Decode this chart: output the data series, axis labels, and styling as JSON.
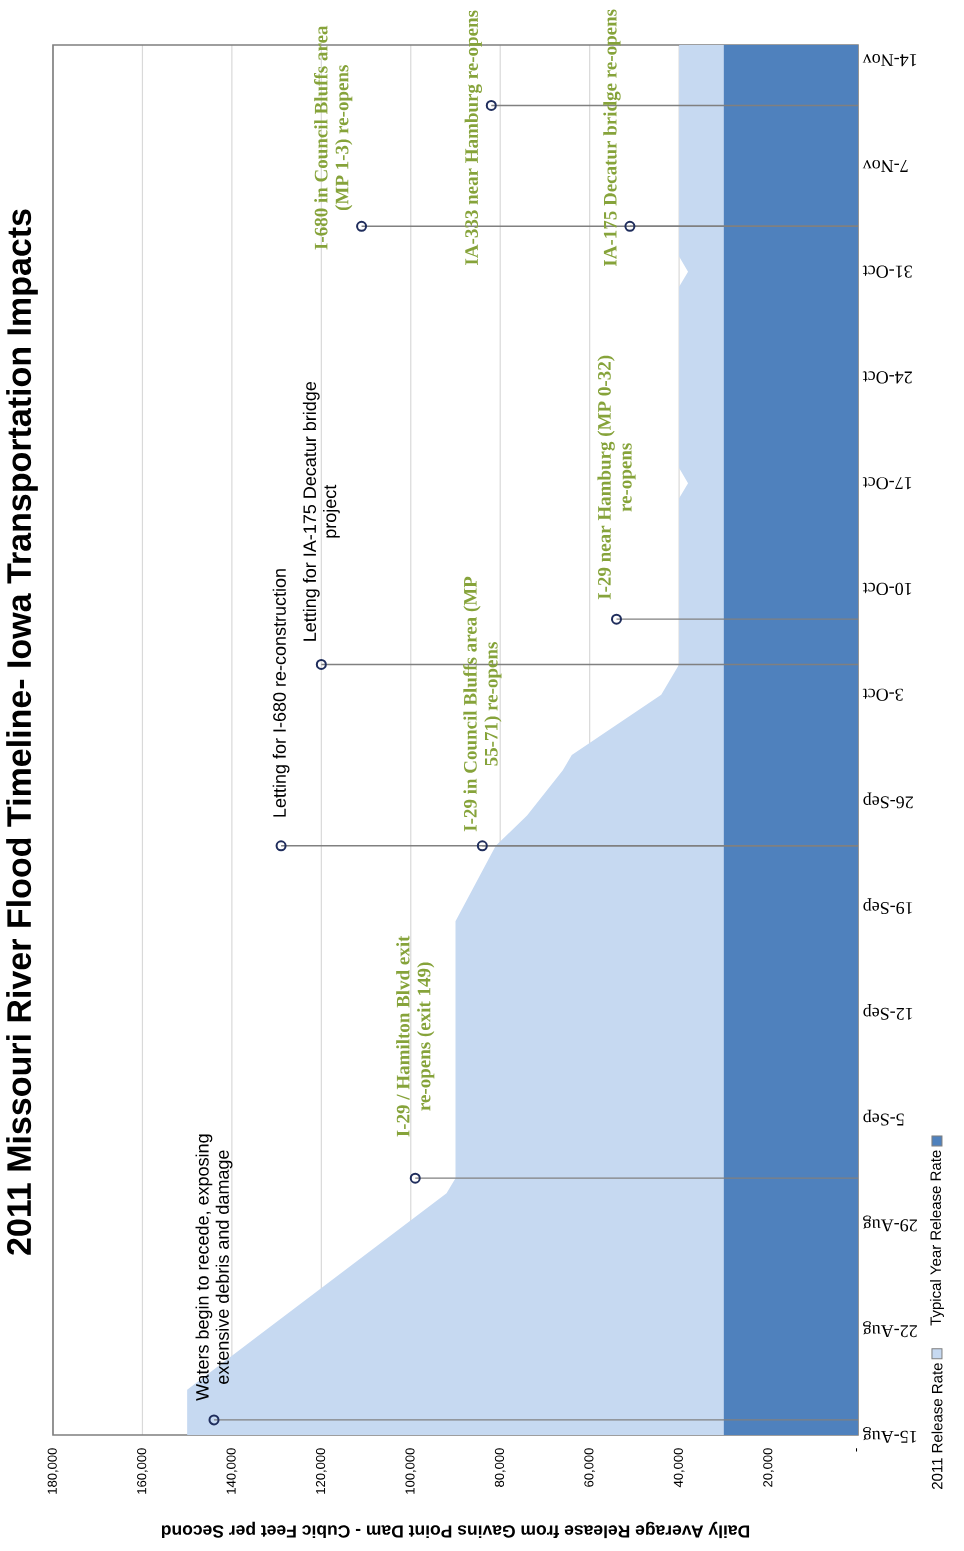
{
  "chart_data": {
    "type": "area",
    "orientation": "horizontal",
    "title": "2011 Missouri River Flood Timeline- Iowa Transportation Impacts",
    "xlabel": "Daily Average Release from Gavins Point Dam - Cubic Feet per Second",
    "series": [
      {
        "name": "2011 Release Rate",
        "color": "#c6d9f1",
        "x": [
          "2011-08-15",
          "2011-08-18",
          "2011-08-31",
          "2011-09-01",
          "2011-09-18",
          "2011-09-23",
          "2011-09-25",
          "2011-09-28",
          "2011-09-29",
          "2011-10-03",
          "2011-10-05",
          "2011-10-16",
          "2011-10-17",
          "2011-10-18",
          "2011-10-30",
          "2011-10-31",
          "2011-11-01",
          "2011-11-15"
        ],
        "values": [
          150000,
          150000,
          92000,
          90000,
          90000,
          81000,
          74000,
          66000,
          64000,
          44000,
          40000,
          40000,
          38000,
          40000,
          40000,
          38000,
          40000,
          40000
        ]
      },
      {
        "name": "Typical Year Release Rate",
        "color": "#4f81bd",
        "x": [
          "2011-08-15",
          "2011-11-15"
        ],
        "values": [
          30000,
          30000
        ]
      },
      {
        "type": "lollipop",
        "color": "#1f2d5c",
        "x": [
          "2011-08-16",
          "2011-09-23",
          "2011-10-05"
        ],
        "values": [
          144000,
          129000,
          120000
        ]
      },
      {
        "type": "lollipop",
        "color": "#1f2d5c",
        "x": [
          "2011-09-01",
          "2011-09-23",
          "2011-10-08",
          "2011-11-03",
          "2011-11-03",
          "2011-11-11"
        ],
        "values": [
          99000,
          84000,
          54000,
          111000,
          51000,
          82000
        ]
      }
    ],
    "xlim": [
      180000,
      0
    ],
    "xticks": [
      {
        "value": 180000,
        "label": "180,000"
      },
      {
        "value": 160000,
        "label": "160,000"
      },
      {
        "value": 140000,
        "label": "140,000"
      },
      {
        "value": 120000,
        "label": "120,000"
      },
      {
        "value": 100000,
        "label": "100,000"
      },
      {
        "value": 80000,
        "label": "80,000"
      },
      {
        "value": 60000,
        "label": "60,000"
      },
      {
        "value": 40000,
        "label": "40,000"
      },
      {
        "value": 20000,
        "label": "20,000"
      },
      {
        "value": 0,
        "label": "-"
      }
    ],
    "ylim": [
      "2011-08-15",
      "2011-11-15"
    ],
    "yticks": [
      {
        "value": "2011-08-15",
        "label": "15-Aug"
      },
      {
        "value": "2011-08-22",
        "label": "22-Aug"
      },
      {
        "value": "2011-08-29",
        "label": "29-Aug"
      },
      {
        "value": "2011-09-05",
        "label": "5-Sep"
      },
      {
        "value": "2011-09-12",
        "label": "12-Sep"
      },
      {
        "value": "2011-09-19",
        "label": "19-Sep"
      },
      {
        "value": "2011-09-26",
        "label": "26-Sep"
      },
      {
        "value": "2011-10-03",
        "label": "3-Oct"
      },
      {
        "value": "2011-10-10",
        "label": "10-Oct"
      },
      {
        "value": "2011-10-17",
        "label": "17-Oct"
      },
      {
        "value": "2011-10-24",
        "label": "24-Oct"
      },
      {
        "value": "2011-10-31",
        "label": "31-Oct"
      },
      {
        "value": "2011-11-07",
        "label": "7-Nov"
      },
      {
        "value": "2011-11-14",
        "label": "14-Nov"
      }
    ],
    "grid": "x",
    "legend": "bottom right",
    "annotations": [
      {
        "text": "Waters begin to recede, exposing extensive debris and damage",
        "x": 144000,
        "y": "2011-08-16"
      },
      {
        "text": "I-29 / Hamilton Blvd exit re-opens (exit 149)",
        "x": 99000,
        "y": "2011-09-01"
      },
      {
        "text": "Letting for I-680 re-construction",
        "x": 129000,
        "y": "2011-09-23"
      },
      {
        "text": "I-29 in Council Bluffs area (MP 55-71) re-opens",
        "x": 84000,
        "y": "2011-09-23"
      },
      {
        "text": "Letting for IA-175 Decatur bridge project",
        "x": 120000,
        "y": "2011-10-05"
      },
      {
        "text": "I-29 near Hamburg (MP 0-32) re-opens",
        "x": 54000,
        "y": "2011-10-08"
      },
      {
        "text": "I-680 in Council Bluffs area (MP 1-3) re-opens",
        "x": 111000,
        "y": "2011-11-03"
      },
      {
        "text": "IA-175 Decatur bridge re-opens",
        "x": 51000,
        "y": "2011-11-03"
      },
      {
        "text": "IA-333 near Hamburg re-opens",
        "x": 82000,
        "y": "2011-11-11"
      }
    ]
  }
}
